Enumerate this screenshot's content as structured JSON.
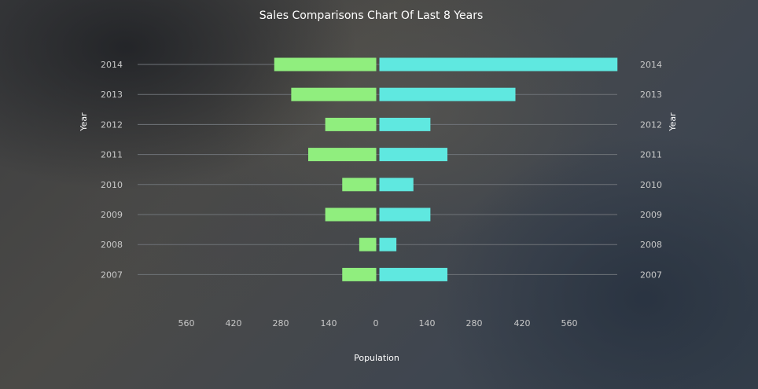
{
  "chart_data": {
    "type": "bar",
    "orientation": "horizontal-diverging",
    "title": "Sales Comparisons Chart Of Last 8 Years",
    "xlabel": "Population",
    "ylabel_left": "Year",
    "ylabel_right": "Year",
    "categories": [
      "2014",
      "2013",
      "2012",
      "2011",
      "2010",
      "2009",
      "2008",
      "2007"
    ],
    "series": [
      {
        "side": "left",
        "color": "#90ee7e",
        "values": [
          300,
          250,
          150,
          200,
          100,
          150,
          50,
          100
        ]
      },
      {
        "side": "right",
        "color": "#5fe8e0",
        "values": [
          700,
          400,
          150,
          200,
          100,
          150,
          50,
          200
        ]
      }
    ],
    "x_ticks": [
      "560",
      "420",
      "280",
      "140",
      "0",
      "140",
      "280",
      "420",
      "560"
    ],
    "xlim_each_side": [
      0,
      700
    ],
    "grid": true,
    "legend": "none"
  },
  "colors": {
    "title": "#ffffff",
    "tick_label": "#c8c8c8",
    "grid": "#6f7378",
    "axis_title": "#ffffff"
  }
}
